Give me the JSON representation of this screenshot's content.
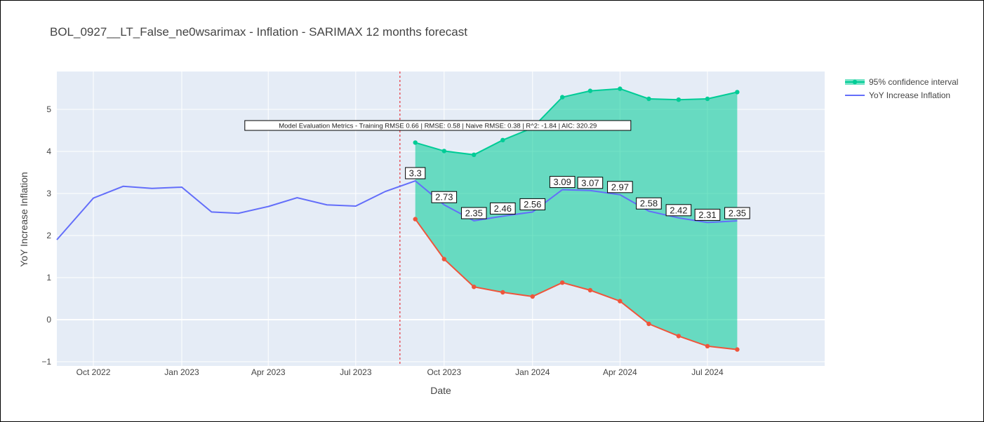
{
  "chart_data": {
    "type": "line",
    "title": "BOL_0927__LT_False_ne0wsarimax - Inflation - SARIMAX 12 months forecast",
    "xlabel": "Date",
    "ylabel": "YoY Increase Inflation",
    "ylim": [
      -1.1,
      5.9
    ],
    "xlim": [
      "2022-08-24",
      "2024-10-31"
    ],
    "grid": true,
    "legend_position": "top-right",
    "x_ticks": [
      {
        "date": "2022-10-01",
        "label": "Oct 2022"
      },
      {
        "date": "2023-01-01",
        "label": "Jan 2023"
      },
      {
        "date": "2023-04-01",
        "label": "Apr 2023"
      },
      {
        "date": "2023-07-01",
        "label": "Jul 2023"
      },
      {
        "date": "2023-10-01",
        "label": "Oct 2023"
      },
      {
        "date": "2024-01-01",
        "label": "Jan 2024"
      },
      {
        "date": "2024-04-01",
        "label": "Apr 2024"
      },
      {
        "date": "2024-07-01",
        "label": "Jul 2024"
      }
    ],
    "y_ticks": [
      -1,
      0,
      1,
      2,
      3,
      4,
      5
    ],
    "forecast_start_line": "2023-08-16",
    "annotation": "Model Evaluation Metrics - Training RMSE 0.66 | RMSE: 0.58 | Naive RMSE: 0.38 | R^2: -1.84 | AIC: 320.29",
    "series": [
      {
        "name": "YoY Increase Inflation",
        "color": "#636efa",
        "x": [
          "2022-08-24",
          "2022-10-01",
          "2022-11-01",
          "2022-12-01",
          "2023-01-01",
          "2023-02-01",
          "2023-03-01",
          "2023-04-01",
          "2023-05-01",
          "2023-06-01",
          "2023-07-01",
          "2023-08-01",
          "2023-09-01",
          "2023-10-01",
          "2023-11-01",
          "2023-12-01",
          "2024-01-01",
          "2024-02-01",
          "2024-03-01",
          "2024-04-01",
          "2024-05-01",
          "2024-06-01",
          "2024-07-01",
          "2024-08-01"
        ],
        "y": [
          1.9,
          2.89,
          3.17,
          3.12,
          3.15,
          2.56,
          2.53,
          2.69,
          2.9,
          2.73,
          2.7,
          3.05,
          3.3,
          2.73,
          2.35,
          2.46,
          2.56,
          3.09,
          3.07,
          2.97,
          2.58,
          2.42,
          2.31,
          2.35
        ]
      },
      {
        "name": "95% confidence interval",
        "color": "#00cc96",
        "fill_color": "rgba(0, 204, 150, 0.55)",
        "x": [
          "2023-09-01",
          "2023-10-01",
          "2023-11-01",
          "2023-12-01",
          "2024-01-01",
          "2024-02-01",
          "2024-03-01",
          "2024-04-01",
          "2024-05-01",
          "2024-06-01",
          "2024-07-01",
          "2024-08-01"
        ],
        "y": [
          4.21,
          4.01,
          3.92,
          4.27,
          4.56,
          5.29,
          5.44,
          5.49,
          5.25,
          5.23,
          5.25,
          5.41
        ]
      },
      {
        "color": "#ef553b",
        "x": [
          "2023-09-01",
          "2023-10-01",
          "2023-11-01",
          "2023-12-01",
          "2024-01-01",
          "2024-02-01",
          "2024-03-01",
          "2024-04-01",
          "2024-05-01",
          "2024-06-01",
          "2024-07-01",
          "2024-08-01"
        ],
        "y": [
          2.39,
          1.44,
          0.78,
          0.65,
          0.55,
          0.88,
          0.7,
          0.44,
          -0.1,
          -0.39,
          -0.63,
          -0.71
        ]
      }
    ],
    "data_labels": [
      {
        "x": "2023-09-01",
        "y": 3.3,
        "text": "3.3"
      },
      {
        "x": "2023-10-01",
        "y": 2.73,
        "text": "2.73"
      },
      {
        "x": "2023-11-01",
        "y": 2.35,
        "text": "2.35"
      },
      {
        "x": "2023-12-01",
        "y": 2.46,
        "text": "2.46"
      },
      {
        "x": "2024-01-01",
        "y": 2.56,
        "text": "2.56"
      },
      {
        "x": "2024-02-01",
        "y": 3.09,
        "text": "3.09"
      },
      {
        "x": "2024-03-01",
        "y": 3.07,
        "text": "3.07"
      },
      {
        "x": "2024-04-01",
        "y": 2.97,
        "text": "2.97"
      },
      {
        "x": "2024-05-01",
        "y": 2.58,
        "text": "2.58"
      },
      {
        "x": "2024-06-01",
        "y": 2.42,
        "text": "2.42"
      },
      {
        "x": "2024-07-01",
        "y": 2.31,
        "text": "2.31"
      },
      {
        "x": "2024-08-01",
        "y": 2.35,
        "text": "2.35"
      }
    ]
  }
}
